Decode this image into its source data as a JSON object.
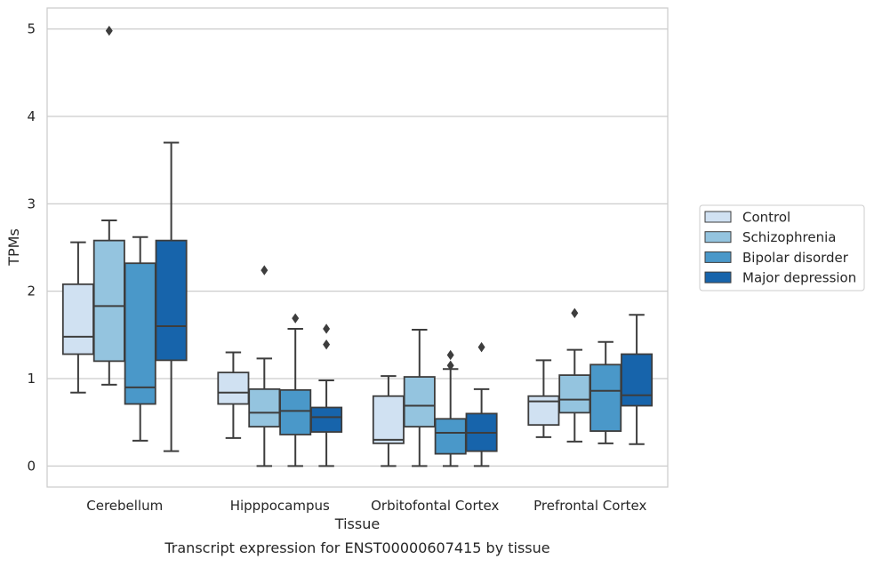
{
  "chart_data": {
    "type": "box",
    "title": "",
    "caption": "Transcript expression for ENST00000607415 by tissue",
    "xlabel": "Tissue",
    "ylabel": "TPMs",
    "ylim": [
      -0.24,
      5.24
    ],
    "yticks": [
      0,
      1,
      2,
      3,
      4,
      5
    ],
    "grid": "horizontal",
    "legend_position": "right",
    "categories": [
      "Cerebellum",
      "Hipppocampus",
      "Orbitofontal Cortex",
      "Prefrontal Cortex"
    ],
    "series": [
      {
        "name": "Control",
        "color": "#d0e1f2",
        "boxes": [
          {
            "whislo": 0.84,
            "q1": 1.28,
            "med": 1.48,
            "q3": 2.08,
            "whishi": 2.56,
            "fliers": []
          },
          {
            "whislo": 0.32,
            "q1": 0.71,
            "med": 0.84,
            "q3": 1.07,
            "whishi": 1.3,
            "fliers": []
          },
          {
            "whislo": 0.0,
            "q1": 0.26,
            "med": 0.3,
            "q3": 0.8,
            "whishi": 1.03,
            "fliers": []
          },
          {
            "whislo": 0.33,
            "q1": 0.47,
            "med": 0.74,
            "q3": 0.8,
            "whishi": 1.21,
            "fliers": []
          }
        ]
      },
      {
        "name": "Schizophrenia",
        "color": "#94c4df",
        "boxes": [
          {
            "whislo": 0.93,
            "q1": 1.2,
            "med": 1.83,
            "q3": 2.58,
            "whishi": 2.81,
            "fliers": [
              4.98
            ]
          },
          {
            "whislo": 0.0,
            "q1": 0.45,
            "med": 0.61,
            "q3": 0.88,
            "whishi": 1.23,
            "fliers": [
              2.24
            ]
          },
          {
            "whislo": 0.0,
            "q1": 0.45,
            "med": 0.69,
            "q3": 1.02,
            "whishi": 1.56,
            "fliers": []
          },
          {
            "whislo": 0.28,
            "q1": 0.61,
            "med": 0.76,
            "q3": 1.04,
            "whishi": 1.33,
            "fliers": [
              1.75
            ]
          }
        ]
      },
      {
        "name": "Bipolar disorder",
        "color": "#4a98c9",
        "boxes": [
          {
            "whislo": 0.29,
            "q1": 0.71,
            "med": 0.9,
            "q3": 2.32,
            "whishi": 2.62,
            "fliers": []
          },
          {
            "whislo": 0.0,
            "q1": 0.36,
            "med": 0.63,
            "q3": 0.87,
            "whishi": 1.57,
            "fliers": [
              1.69
            ]
          },
          {
            "whislo": 0.0,
            "q1": 0.14,
            "med": 0.38,
            "q3": 0.54,
            "whishi": 1.11,
            "fliers": [
              1.27,
              1.15
            ]
          },
          {
            "whislo": 0.26,
            "q1": 0.4,
            "med": 0.86,
            "q3": 1.16,
            "whishi": 1.42,
            "fliers": []
          }
        ]
      },
      {
        "name": "Major depression",
        "color": "#1764ab",
        "boxes": [
          {
            "whislo": 0.17,
            "q1": 1.21,
            "med": 1.6,
            "q3": 2.58,
            "whishi": 3.7,
            "fliers": []
          },
          {
            "whislo": 0.0,
            "q1": 0.39,
            "med": 0.56,
            "q3": 0.67,
            "whishi": 0.98,
            "fliers": [
              1.57,
              1.39
            ]
          },
          {
            "whislo": 0.0,
            "q1": 0.17,
            "med": 0.38,
            "q3": 0.6,
            "whishi": 0.88,
            "fliers": [
              1.36
            ]
          },
          {
            "whislo": 0.25,
            "q1": 0.69,
            "med": 0.81,
            "q3": 1.28,
            "whishi": 1.73,
            "fliers": []
          }
        ]
      }
    ]
  }
}
